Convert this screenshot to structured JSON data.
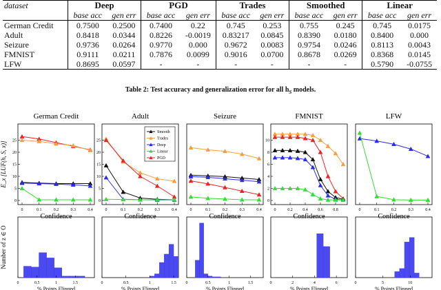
{
  "table": {
    "header_dataset": "dataset",
    "groups": [
      "Deep",
      "PGD",
      "Trades",
      "Smoothed",
      "Linear"
    ],
    "subheaders": [
      "base acc",
      "gen err"
    ],
    "rows": [
      {
        "dataset": "German Credit",
        "values": [
          "0.7500",
          "0.2500",
          "0.7400",
          "0.22",
          "0.745",
          "0.253",
          "0.755",
          "0.245",
          "0.745",
          "0.0175"
        ]
      },
      {
        "dataset": "Adult",
        "values": [
          "0.8418",
          "0.0344",
          "0.8226",
          "-0.0019",
          "0.83217",
          "0.0845",
          "0.8390",
          "0.0180",
          "0.8400",
          "0.000"
        ]
      },
      {
        "dataset": "Seizure",
        "values": [
          "0.9736",
          "0.0264",
          "0.9770",
          "0.000",
          "0.9672",
          "0.0083",
          "0.9754",
          "0.0246",
          "0.8113",
          "0.0043"
        ]
      },
      {
        "dataset": "FMNIST",
        "values": [
          "0.9111",
          "0.0211",
          "0.7876",
          "0.0099",
          "0.9016",
          "0.0700",
          "0.8678",
          "0.0269",
          "0.8368",
          "0.0145"
        ]
      },
      {
        "dataset": "LFW",
        "values": [
          "0.8695",
          "0.0597",
          "-",
          "-",
          "-",
          "-",
          "-",
          "-",
          "0.5790",
          "-0.0755"
        ]
      }
    ]
  },
  "caption": "Table 2: Test accuracy and generalization error for all h",
  "caption_sub": "S",
  "caption_end": " models.",
  "figure": {
    "ylabel_top": "E_x [LUF(h, S, x)]",
    "ylabel_bottom": "Number of z ∈ O",
    "xlabel_top": "Confidence",
    "xlabel_bottom": "% Points Flipped",
    "legend": [
      {
        "name": "Smooth",
        "color": "#111111",
        "marker": "triangle"
      },
      {
        "name": "Trades",
        "color": "#f5a040",
        "marker": "triangle"
      },
      {
        "name": "Deep",
        "color": "#2a2aee",
        "marker": "triangle"
      },
      {
        "name": "Linear",
        "color": "#33dd33",
        "marker": "triangle"
      },
      {
        "name": "PGD",
        "color": "#ee2222",
        "marker": "triangle"
      }
    ]
  },
  "chart_data": [
    {
      "type": "line",
      "title": "German Credit",
      "xlabel": "Confidence",
      "xlim": [
        0,
        0.4
      ],
      "ylim": [
        0,
        30
      ],
      "xticks": [
        "0",
        "0.1",
        "0.2",
        "0.3",
        "0.4"
      ],
      "yticks": [
        "0",
        "5",
        "10",
        "15",
        "20",
        "25"
      ],
      "series": [
        {
          "name": "PGD",
          "color": "#ee2222",
          "x": [
            0,
            0.1,
            0.2,
            0.3,
            0.4
          ],
          "y": [
            26.5,
            25.5,
            24,
            22.5,
            21
          ]
        },
        {
          "name": "Trades",
          "color": "#f5a040",
          "x": [
            0,
            0.1,
            0.2,
            0.3,
            0.4
          ],
          "y": [
            25,
            24.5,
            23.5,
            22.8,
            20.8
          ]
        },
        {
          "name": "Smooth",
          "color": "#111111",
          "x": [
            0,
            0.1,
            0.2,
            0.3,
            0.4
          ],
          "y": [
            7.5,
            7.2,
            7,
            7,
            7
          ]
        },
        {
          "name": "Deep",
          "color": "#2a2aee",
          "x": [
            0,
            0.1,
            0.2,
            0.3,
            0.4
          ],
          "y": [
            7.2,
            7,
            6.8,
            6.5,
            6
          ]
        },
        {
          "name": "Linear",
          "color": "#33dd33",
          "x": [
            0,
            0.1,
            0.2,
            0.3,
            0.4
          ],
          "y": [
            5,
            0.3,
            0.3,
            0.3,
            0.3
          ]
        }
      ]
    },
    {
      "type": "line",
      "title": "Adult",
      "xlabel": "Confidence",
      "xlim": [
        0,
        0.4
      ],
      "ylim": [
        0,
        30
      ],
      "xticks": [
        "0",
        "0.1",
        "0.2",
        "0.3",
        "0.4"
      ],
      "yticks": [
        "0",
        "5",
        "10",
        "15",
        "20",
        "25"
      ],
      "series": [
        {
          "name": "Trades",
          "color": "#f5a040",
          "x": [
            0,
            0.1,
            0.2,
            0.3,
            0.4
          ],
          "y": [
            25.5,
            16,
            11.5,
            9,
            8
          ]
        },
        {
          "name": "PGD",
          "color": "#ee2222",
          "x": [
            0,
            0.1,
            0.2,
            0.3,
            0.4
          ],
          "y": [
            25,
            16.5,
            10,
            6,
            1.5
          ]
        },
        {
          "name": "Smooth",
          "color": "#111111",
          "x": [
            0,
            0.1,
            0.2,
            0.3,
            0.4
          ],
          "y": [
            14.5,
            3.5,
            1,
            0.5,
            0.3
          ]
        },
        {
          "name": "Deep",
          "color": "#2a2aee",
          "x": [
            0,
            0.1,
            0.2,
            0.3,
            0.4
          ],
          "y": [
            9.5,
            0.5,
            0.3,
            0.2,
            0.2
          ]
        },
        {
          "name": "Linear",
          "color": "#33dd33",
          "x": [
            0,
            0.1,
            0.2,
            0.3,
            0.4
          ],
          "y": [
            0.5,
            0.4,
            0.3,
            0.3,
            0.3
          ]
        }
      ]
    },
    {
      "type": "line",
      "title": "Seizure",
      "xlabel": "Confidence",
      "xlim": [
        0,
        0.4
      ],
      "ylim": [
        0,
        10
      ],
      "xticks": [
        "0",
        "0.1",
        "0.2",
        "0.3",
        "0.4"
      ],
      "yticks": [],
      "series": [
        {
          "name": "Trades",
          "color": "#f5a040",
          "x": [
            0,
            0.1,
            0.2,
            0.3,
            0.4
          ],
          "y": [
            7.3,
            7,
            6.8,
            6.4,
            5.8
          ]
        },
        {
          "name": "Smooth",
          "color": "#111111",
          "x": [
            0,
            0.1,
            0.2,
            0.3,
            0.4
          ],
          "y": [
            3.5,
            3.4,
            3.3,
            3.1,
            2.9
          ]
        },
        {
          "name": "Deep",
          "color": "#2a2aee",
          "x": [
            0,
            0.1,
            0.2,
            0.3,
            0.4
          ],
          "y": [
            3.3,
            3.2,
            3,
            2.8,
            2.6
          ]
        },
        {
          "name": "PGD",
          "color": "#ee2222",
          "x": [
            0,
            0.1,
            0.2,
            0.3,
            0.4
          ],
          "y": [
            2.7,
            2.3,
            1.8,
            1.3,
            0.8
          ]
        },
        {
          "name": "Linear",
          "color": "#33dd33",
          "x": [
            0,
            0.1,
            0.2,
            0.3,
            0.4
          ],
          "y": [
            0.5,
            0.3,
            0.2,
            0.1,
            0.1
          ]
        }
      ]
    },
    {
      "type": "line",
      "title": "FMNIST",
      "xlabel": "Confidence",
      "xlim": [
        0,
        0.9
      ],
      "ylim": [
        0,
        12
      ],
      "xticks": [
        "0",
        "0.2",
        "0.4",
        "0.6",
        "0.8"
      ],
      "yticks": [
        "0",
        "2",
        "4",
        "6",
        "8",
        "10"
      ],
      "series": [
        {
          "name": "Trades",
          "color": "#f5a040",
          "x": [
            0,
            0.1,
            0.2,
            0.3,
            0.4,
            0.5,
            0.6,
            0.7,
            0.8,
            0.9
          ],
          "y": [
            11,
            11,
            11,
            11,
            11,
            10.8,
            10,
            9,
            7.8,
            6
          ]
        },
        {
          "name": "PGD",
          "color": "#ee2222",
          "x": [
            0,
            0.1,
            0.2,
            0.3,
            0.4,
            0.5,
            0.6,
            0.7,
            0.8,
            0.9
          ],
          "y": [
            10.5,
            10.5,
            10.5,
            10.5,
            10.3,
            10,
            8,
            4,
            1.5,
            0.3
          ]
        },
        {
          "name": "Smooth",
          "color": "#111111",
          "x": [
            0,
            0.1,
            0.2,
            0.3,
            0.4,
            0.5,
            0.6,
            0.7,
            0.8,
            0.9
          ],
          "y": [
            8.3,
            8.3,
            8.3,
            8.2,
            8,
            6.8,
            3.5,
            1.5,
            0.5,
            0.2
          ]
        },
        {
          "name": "Deep",
          "color": "#2a2aee",
          "x": [
            0,
            0.1,
            0.2,
            0.3,
            0.4,
            0.5,
            0.6,
            0.7,
            0.8,
            0.9
          ],
          "y": [
            7.1,
            7.1,
            7.1,
            7,
            6.8,
            5.5,
            2.5,
            0.8,
            0.2,
            0.1
          ]
        },
        {
          "name": "Linear",
          "color": "#33dd33",
          "x": [
            0,
            0.1,
            0.2,
            0.3,
            0.4,
            0.5,
            0.6,
            0.7,
            0.8,
            0.9
          ],
          "y": [
            2,
            2,
            2,
            2,
            1.8,
            1,
            0.3,
            0.1,
            0.1,
            0.1
          ]
        }
      ]
    },
    {
      "type": "line",
      "title": "LFW",
      "xlabel": "Confidence",
      "xlim": [
        0,
        0.4
      ],
      "ylim": [
        0,
        90
      ],
      "xticks": [
        "0",
        "0.1",
        "0.2",
        "0.3",
        "0.4"
      ],
      "yticks": [],
      "series": [
        {
          "name": "Deep",
          "color": "#2a2aee",
          "x": [
            0,
            0.1,
            0.2,
            0.3,
            0.4
          ],
          "y": [
            77,
            74,
            70,
            64,
            55
          ]
        },
        {
          "name": "Linear",
          "color": "#33dd33",
          "x": [
            0,
            0.1,
            0.2,
            0.3,
            0.4
          ],
          "y": [
            84,
            5,
            1,
            0.5,
            0.5
          ]
        }
      ]
    },
    {
      "type": "bar",
      "title": "German Credit",
      "xlabel": "% Points Flipped",
      "xlim": [
        0,
        2
      ],
      "ylim": [
        0,
        80
      ],
      "xticks": [
        "0",
        "0.5",
        "1",
        "1.5"
      ],
      "bin_width": 0.2,
      "bins": [
        0.25,
        0.45,
        0.65,
        0.85,
        1.05,
        1.25,
        1.45,
        1.65
      ],
      "values": [
        15,
        14,
        33,
        26,
        13,
        2,
        2,
        2
      ]
    },
    {
      "type": "bar",
      "title": "Adult",
      "xlabel": "% Points Flipped",
      "xlim": [
        0,
        1.6
      ],
      "ylim": [
        0,
        80
      ],
      "xticks": [
        "0",
        "0.5",
        "1",
        "1.5"
      ],
      "bin_width": 0.1,
      "bins": [
        1.05,
        1.15,
        1.25,
        1.35,
        1.45,
        1.55
      ],
      "values": [
        2,
        5,
        20,
        31,
        44,
        28
      ]
    },
    {
      "type": "bar",
      "title": "Seizure",
      "xlabel": "% Points Flipped",
      "xlim": [
        0,
        1.8
      ],
      "ylim": [
        0,
        80
      ],
      "xticks": [
        "0",
        "0.5",
        "1",
        "1.5"
      ],
      "bin_width": 0.1,
      "bins": [
        0.25,
        0.35,
        0.45,
        0.55,
        0.65,
        0.75
      ],
      "values": [
        23,
        72,
        5,
        2,
        1,
        1
      ]
    },
    {
      "type": "bar",
      "title": "FMNIST",
      "xlabel": "% Points Flipped",
      "xlim": [
        0,
        7
      ],
      "ylim": [
        0,
        80
      ],
      "xticks": [
        "0",
        "2",
        "4",
        "6"
      ],
      "bin_width": 0.6,
      "bins": [
        4.5,
        5.1
      ],
      "values": [
        58,
        41
      ]
    },
    {
      "type": "bar",
      "title": "LFW",
      "xlabel": "% Points Flipped",
      "xlim": [
        0,
        14
      ],
      "ylim": [
        0,
        80
      ],
      "xticks": [
        "0",
        "5",
        "10"
      ],
      "bin_width": 0.9,
      "bins": [
        7.6,
        8.5,
        9.4,
        10.3,
        11.2
      ],
      "values": [
        8,
        12,
        47,
        53,
        6
      ]
    }
  ]
}
